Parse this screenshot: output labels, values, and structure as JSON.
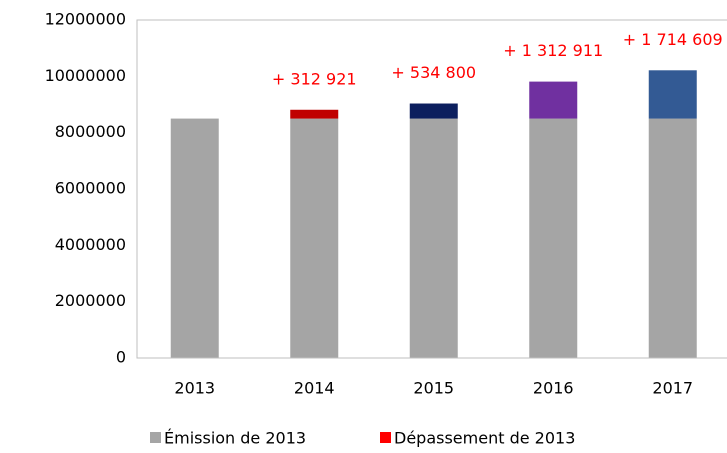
{
  "chart_data": {
    "type": "stacked_bar",
    "categories": [
      "2013",
      "2014",
      "2015",
      "2016",
      "2017"
    ],
    "series": [
      {
        "name": "Émission de 2013",
        "color": "#a5a5a5",
        "values": [
          8500000,
          8500000,
          8500000,
          8500000,
          8500000
        ]
      },
      {
        "name": "Dépassement de 2013",
        "color": "#ff0000",
        "colors": [
          null,
          "#c00000",
          "#0c1f5e",
          "#7030a0",
          "#335a94"
        ],
        "values": [
          null,
          312921,
          534800,
          1312911,
          1714609
        ],
        "value_labels": [
          null,
          "+ 312 921",
          "+ 534 800",
          "+ 1 312 911",
          "+ 1 714 609"
        ]
      }
    ],
    "ylim": [
      0,
      12000000
    ],
    "yticks": [
      0,
      2000000,
      4000000,
      6000000,
      8000000,
      10000000,
      12000000
    ],
    "grid": false,
    "legend": "bottom"
  }
}
